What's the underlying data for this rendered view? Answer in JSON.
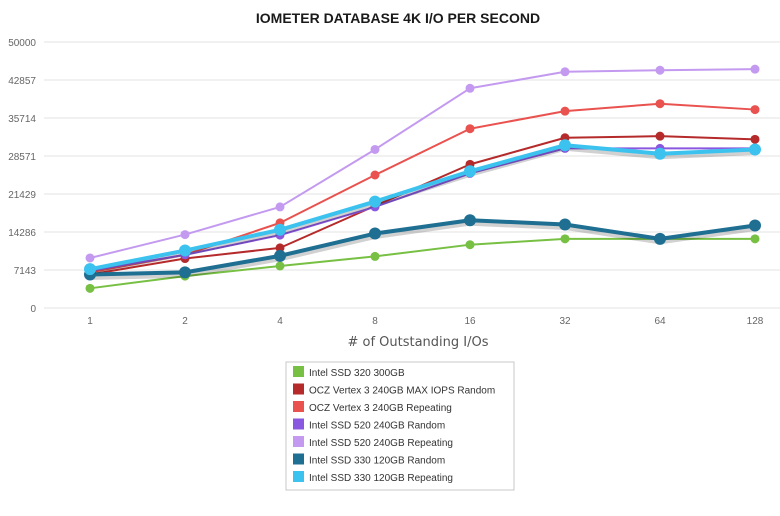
{
  "chart_data": {
    "type": "line",
    "title": "IOMETER DATABASE 4K I/O PER SECOND",
    "xlabel": "# of Outstanding I/Os",
    "ylabel": "",
    "categories": [
      "1",
      "2",
      "4",
      "8",
      "16",
      "32",
      "64",
      "128"
    ],
    "yticks": [
      "0",
      "7143",
      "14286",
      "21429",
      "28571",
      "35714",
      "42857",
      "50000"
    ],
    "ylim": [
      0,
      50000
    ],
    "grid": true,
    "legend_position": "bottom-center",
    "series": [
      {
        "name": "Intel SSD 320 300GB",
        "color": "#77c043",
        "values": [
          3700,
          6000,
          7900,
          9700,
          11900,
          13000,
          13000,
          13000
        ]
      },
      {
        "name": "OCZ Vertex 3 240GB MAX IOPS Random",
        "color": "#b52a2a",
        "values": [
          6300,
          9300,
          11300,
          19200,
          27000,
          32000,
          32300,
          31700
        ]
      },
      {
        "name": "OCZ Vertex 3 240GB Repeating",
        "color": "#e9524e",
        "values": [
          6700,
          10000,
          16000,
          25000,
          33700,
          37000,
          38400,
          37300
        ]
      },
      {
        "name": "Intel SSD 520 240GB Random",
        "color": "#8a58e0",
        "values": [
          7000,
          10000,
          13700,
          19000,
          25300,
          30000,
          30000,
          30000
        ]
      },
      {
        "name": "Intel SSD 520 240GB Repeating",
        "color": "#c39af0",
        "values": [
          9400,
          13800,
          19000,
          29800,
          41300,
          44400,
          44700,
          44900
        ]
      },
      {
        "name": "Intel SSD 330 120GB Random",
        "color": "#1f6f92",
        "values": [
          6300,
          6700,
          9800,
          14000,
          16500,
          15700,
          13000,
          15500
        ]
      },
      {
        "name": "Intel SSD 330 120GB Repeating",
        "color": "#3cc2ee",
        "values": [
          7300,
          10800,
          14700,
          20000,
          25700,
          30600,
          29000,
          29800
        ]
      }
    ]
  }
}
